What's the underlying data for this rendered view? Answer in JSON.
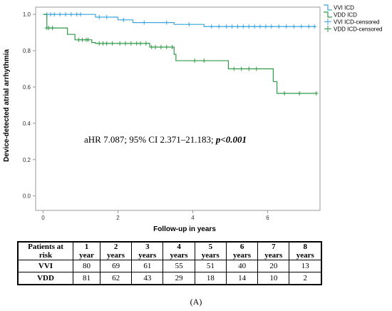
{
  "chart_data": {
    "type": "line",
    "ylabel": "Device-detected atrial arrhythmia",
    "xlabel": "Follow-up in years",
    "xlim": [
      -0.2,
      7.4
    ],
    "ylim": [
      -0.08,
      1.04
    ],
    "x_ticks": [
      "0",
      "2",
      "4",
      "6"
    ],
    "x_tick_values": [
      0,
      2,
      4,
      6
    ],
    "y_ticks": [
      "0.0",
      "0.2",
      "0.4",
      "0.6",
      "0.8",
      "1.0"
    ],
    "y_tick_values": [
      0,
      0.2,
      0.4,
      0.6,
      0.8,
      1.0
    ],
    "grid": false,
    "legend_placement": "top-right",
    "legend": [
      "VVI ICD",
      "VDD ICD",
      "VVI ICD-censored",
      "VDD ICD-censored"
    ],
    "annotation_plain": "aHR 7.087; 95% CI 2.371–21.183; ",
    "annotation_bold": "p<0.001",
    "series": [
      {
        "name": "VVI ICD",
        "color": "#3aa6dd",
        "steps": [
          [
            0,
            1.0
          ],
          [
            1.4,
            0.985
          ],
          [
            2.0,
            0.97
          ],
          [
            2.4,
            0.955
          ],
          [
            3.5,
            0.945
          ],
          [
            4.3,
            0.933
          ],
          [
            7.3,
            0.933
          ]
        ],
        "censored": [
          0.1,
          0.2,
          0.3,
          0.45,
          0.6,
          0.75,
          0.9,
          1.0,
          1.5,
          1.7,
          2.15,
          2.7,
          3.3,
          3.9,
          4.5,
          4.7,
          4.9,
          5.05,
          5.2,
          5.35,
          5.5,
          5.65,
          5.8,
          5.95,
          6.1,
          6.3,
          6.5,
          6.7,
          6.9,
          7.1,
          7.25
        ]
      },
      {
        "name": "VDD ICD",
        "color": "#2e9a47",
        "steps": [
          [
            0,
            1.0
          ],
          [
            0.1,
            0.925
          ],
          [
            0.65,
            0.89
          ],
          [
            0.85,
            0.86
          ],
          [
            1.3,
            0.845
          ],
          [
            1.4,
            0.84
          ],
          [
            2.85,
            0.82
          ],
          [
            3.5,
            0.78
          ],
          [
            3.55,
            0.745
          ],
          [
            4.95,
            0.7
          ],
          [
            6.15,
            0.63
          ],
          [
            6.25,
            0.565
          ],
          [
            7.3,
            0.565
          ]
        ],
        "censored": [
          0.1,
          0.15,
          0.25,
          0.95,
          1.05,
          1.15,
          1.2,
          1.5,
          1.6,
          1.7,
          1.85,
          2.05,
          2.2,
          2.35,
          2.5,
          2.6,
          2.75,
          2.9,
          3.0,
          3.15,
          3.3,
          3.45,
          4.05,
          4.3,
          5.1,
          5.3,
          5.5,
          5.7,
          6.45,
          6.85,
          7.3
        ]
      }
    ]
  },
  "risk_table": {
    "header_label": [
      "Patients at",
      "risk"
    ],
    "years": [
      {
        "num": "1",
        "unit": "year"
      },
      {
        "num": "2",
        "unit": "years"
      },
      {
        "num": "3",
        "unit": "years"
      },
      {
        "num": "4",
        "unit": "years"
      },
      {
        "num": "5",
        "unit": "years"
      },
      {
        "num": "6",
        "unit": "years"
      },
      {
        "num": "7",
        "unit": "years"
      },
      {
        "num": "8",
        "unit": "years"
      }
    ],
    "rows": [
      {
        "label": "VVI",
        "values": [
          "80",
          "69",
          "61",
          "55",
          "51",
          "40",
          "20",
          "13"
        ]
      },
      {
        "label": "VDD",
        "values": [
          "81",
          "62",
          "43",
          "29",
          "18",
          "14",
          "10",
          "2"
        ]
      }
    ]
  },
  "caption": "(A)"
}
